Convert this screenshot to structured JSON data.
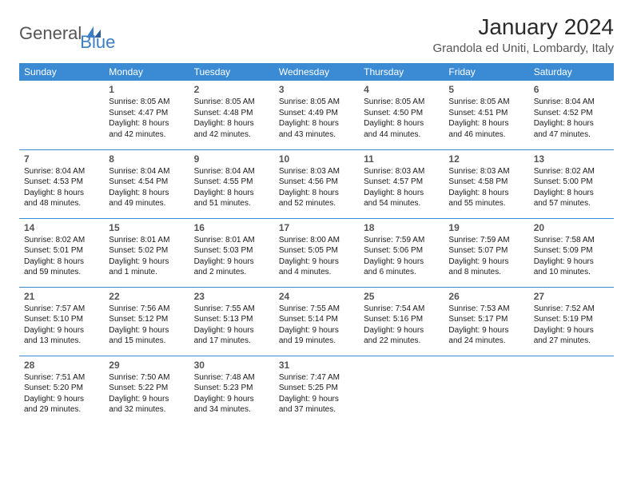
{
  "logo": {
    "part1": "General",
    "part2": "Blue"
  },
  "title": "January 2024",
  "location": "Grandola ed Uniti, Lombardy, Italy",
  "colors": {
    "header_bg": "#3b8bd4",
    "header_fg": "#ffffff",
    "border": "#3b8bd4",
    "logo_gray": "#555555",
    "logo_blue": "#3b7fc4",
    "text": "#1a1a1a",
    "daynum": "#555555",
    "background": "#ffffff"
  },
  "weekdays": [
    "Sunday",
    "Monday",
    "Tuesday",
    "Wednesday",
    "Thursday",
    "Friday",
    "Saturday"
  ],
  "weeks": [
    [
      null,
      {
        "n": "1",
        "sunrise": "8:05 AM",
        "sunset": "4:47 PM",
        "daylight": "8 hours and 42 minutes."
      },
      {
        "n": "2",
        "sunrise": "8:05 AM",
        "sunset": "4:48 PM",
        "daylight": "8 hours and 42 minutes."
      },
      {
        "n": "3",
        "sunrise": "8:05 AM",
        "sunset": "4:49 PM",
        "daylight": "8 hours and 43 minutes."
      },
      {
        "n": "4",
        "sunrise": "8:05 AM",
        "sunset": "4:50 PM",
        "daylight": "8 hours and 44 minutes."
      },
      {
        "n": "5",
        "sunrise": "8:05 AM",
        "sunset": "4:51 PM",
        "daylight": "8 hours and 46 minutes."
      },
      {
        "n": "6",
        "sunrise": "8:04 AM",
        "sunset": "4:52 PM",
        "daylight": "8 hours and 47 minutes."
      }
    ],
    [
      {
        "n": "7",
        "sunrise": "8:04 AM",
        "sunset": "4:53 PM",
        "daylight": "8 hours and 48 minutes."
      },
      {
        "n": "8",
        "sunrise": "8:04 AM",
        "sunset": "4:54 PM",
        "daylight": "8 hours and 49 minutes."
      },
      {
        "n": "9",
        "sunrise": "8:04 AM",
        "sunset": "4:55 PM",
        "daylight": "8 hours and 51 minutes."
      },
      {
        "n": "10",
        "sunrise": "8:03 AM",
        "sunset": "4:56 PM",
        "daylight": "8 hours and 52 minutes."
      },
      {
        "n": "11",
        "sunrise": "8:03 AM",
        "sunset": "4:57 PM",
        "daylight": "8 hours and 54 minutes."
      },
      {
        "n": "12",
        "sunrise": "8:03 AM",
        "sunset": "4:58 PM",
        "daylight": "8 hours and 55 minutes."
      },
      {
        "n": "13",
        "sunrise": "8:02 AM",
        "sunset": "5:00 PM",
        "daylight": "8 hours and 57 minutes."
      }
    ],
    [
      {
        "n": "14",
        "sunrise": "8:02 AM",
        "sunset": "5:01 PM",
        "daylight": "8 hours and 59 minutes."
      },
      {
        "n": "15",
        "sunrise": "8:01 AM",
        "sunset": "5:02 PM",
        "daylight": "9 hours and 1 minute."
      },
      {
        "n": "16",
        "sunrise": "8:01 AM",
        "sunset": "5:03 PM",
        "daylight": "9 hours and 2 minutes."
      },
      {
        "n": "17",
        "sunrise": "8:00 AM",
        "sunset": "5:05 PM",
        "daylight": "9 hours and 4 minutes."
      },
      {
        "n": "18",
        "sunrise": "7:59 AM",
        "sunset": "5:06 PM",
        "daylight": "9 hours and 6 minutes."
      },
      {
        "n": "19",
        "sunrise": "7:59 AM",
        "sunset": "5:07 PM",
        "daylight": "9 hours and 8 minutes."
      },
      {
        "n": "20",
        "sunrise": "7:58 AM",
        "sunset": "5:09 PM",
        "daylight": "9 hours and 10 minutes."
      }
    ],
    [
      {
        "n": "21",
        "sunrise": "7:57 AM",
        "sunset": "5:10 PM",
        "daylight": "9 hours and 13 minutes."
      },
      {
        "n": "22",
        "sunrise": "7:56 AM",
        "sunset": "5:12 PM",
        "daylight": "9 hours and 15 minutes."
      },
      {
        "n": "23",
        "sunrise": "7:55 AM",
        "sunset": "5:13 PM",
        "daylight": "9 hours and 17 minutes."
      },
      {
        "n": "24",
        "sunrise": "7:55 AM",
        "sunset": "5:14 PM",
        "daylight": "9 hours and 19 minutes."
      },
      {
        "n": "25",
        "sunrise": "7:54 AM",
        "sunset": "5:16 PM",
        "daylight": "9 hours and 22 minutes."
      },
      {
        "n": "26",
        "sunrise": "7:53 AM",
        "sunset": "5:17 PM",
        "daylight": "9 hours and 24 minutes."
      },
      {
        "n": "27",
        "sunrise": "7:52 AM",
        "sunset": "5:19 PM",
        "daylight": "9 hours and 27 minutes."
      }
    ],
    [
      {
        "n": "28",
        "sunrise": "7:51 AM",
        "sunset": "5:20 PM",
        "daylight": "9 hours and 29 minutes."
      },
      {
        "n": "29",
        "sunrise": "7:50 AM",
        "sunset": "5:22 PM",
        "daylight": "9 hours and 32 minutes."
      },
      {
        "n": "30",
        "sunrise": "7:48 AM",
        "sunset": "5:23 PM",
        "daylight": "9 hours and 34 minutes."
      },
      {
        "n": "31",
        "sunrise": "7:47 AM",
        "sunset": "5:25 PM",
        "daylight": "9 hours and 37 minutes."
      },
      null,
      null,
      null
    ]
  ],
  "labels": {
    "sunrise": "Sunrise:",
    "sunset": "Sunset:",
    "daylight": "Daylight:"
  }
}
